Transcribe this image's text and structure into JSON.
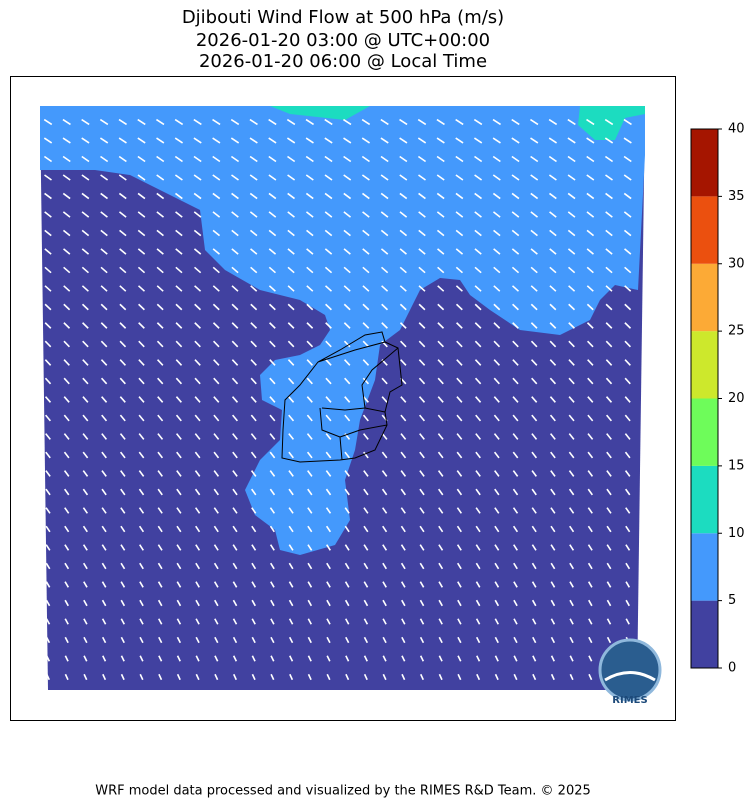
{
  "header": {
    "title": [
      "Djibouti Wind Flow at 500 hPa (m/s)",
      "2026-01-20 03:00 @ UTC+00:00",
      "2026-01-20 06:00 @ Local Time"
    ]
  },
  "colorbar": {
    "ticks": [
      0,
      5,
      10,
      15,
      20,
      25,
      30,
      35,
      40
    ],
    "colors": [
      "#4141a0",
      "#4499fc",
      "#1cdcc0",
      "#6efc5a",
      "#cde82c",
      "#fcaa36",
      "#eb500f",
      "#a51500"
    ]
  },
  "logo": {
    "text": "RIMES"
  },
  "footer": {
    "text": "WRF model data processed and visualized by the RIMES R&D Team. © 2025"
  }
}
